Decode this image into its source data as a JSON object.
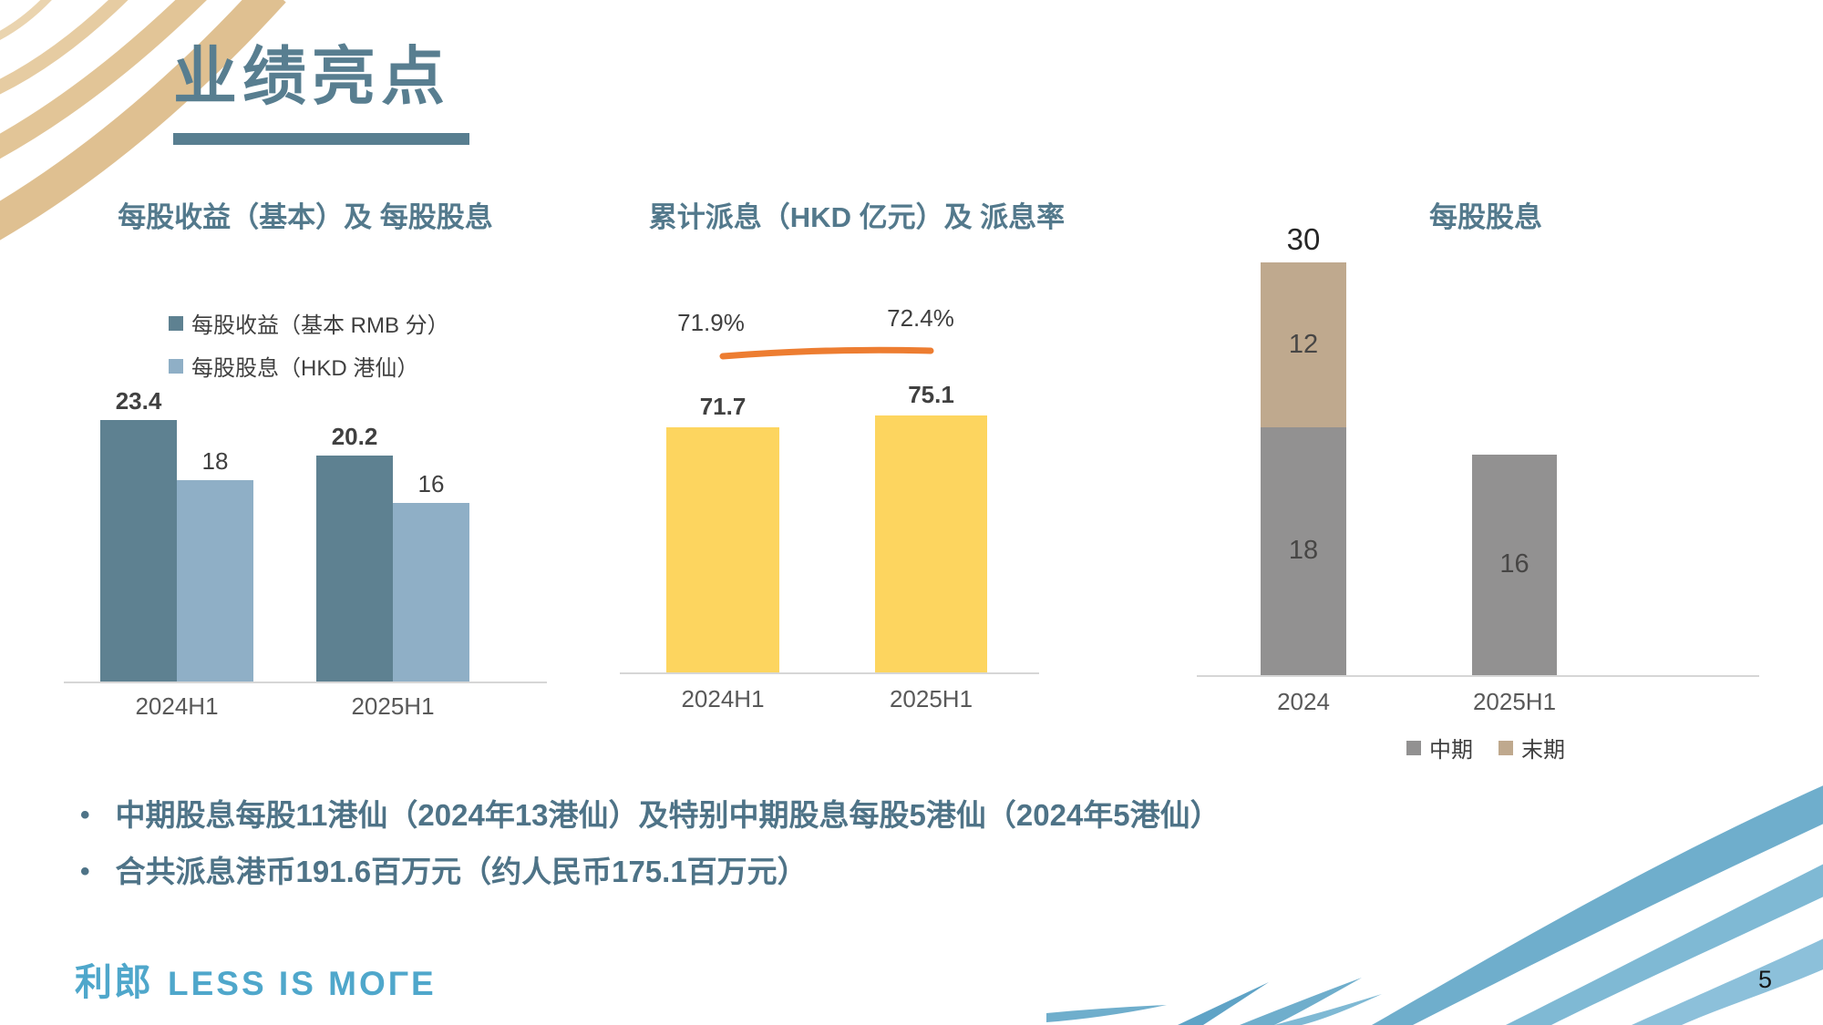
{
  "slide": {
    "title": "业绩亮点",
    "page_number": "5",
    "bullets": [
      "中期股息每股11港仙（2024年13港仙）及特别中期股息每股5港仙（2024年5港仙）",
      "合共派息港币191.6百万元（约人民币175.1百万元）"
    ],
    "logo": {
      "cn": "利郎",
      "en": "LESS IS MOΓE"
    }
  },
  "colors": {
    "title_text": "#587E90",
    "bullet_text": "#4E7387",
    "logo_blue": "#4FA7CB",
    "axis_line": "#D6D6D6",
    "decor_tan": "#E2C597",
    "decor_blue": "#6FAECC"
  },
  "chart_data": [
    {
      "id": "eps_dps",
      "type": "bar",
      "title": "每股收益（基本）及 每股股息",
      "categories": [
        "2024H1",
        "2025H1"
      ],
      "series": [
        {
          "name": "每股收益（基本 RMB 分）",
          "values": [
            23.4,
            20.2
          ],
          "color": "#5E8191"
        },
        {
          "name": "每股股息（HKD 港仙）",
          "values": [
            18,
            16
          ],
          "color": "#8FAFC6"
        }
      ],
      "legend_position": "top-left",
      "value_axis_visible": false,
      "grid": false
    },
    {
      "id": "payout",
      "type": "bar+line",
      "title": "累计派息（HKD 亿元）及 派息率",
      "categories": [
        "2024H1",
        "2025H1"
      ],
      "bar_series": {
        "name": "累计派息（HKD 亿元）",
        "values": [
          71.7,
          75.1
        ],
        "color": "#FDD55F"
      },
      "line_series": {
        "name": "派息率",
        "values": [
          71.9,
          72.4
        ],
        "labels": [
          "71.9%",
          "72.4%"
        ],
        "color": "#ED7D31"
      },
      "value_axis_visible": false,
      "grid": false
    },
    {
      "id": "dps_stacked",
      "type": "bar",
      "subtype": "stacked",
      "title": "每股股息",
      "categories": [
        "2024",
        "2025H1"
      ],
      "series": [
        {
          "name": "中期",
          "values": [
            18,
            16
          ],
          "color": "#929191"
        },
        {
          "name": "末期",
          "values": [
            12,
            0
          ],
          "color": "#BFA98E"
        }
      ],
      "totals": [
        30,
        null
      ],
      "legend_position": "bottom",
      "value_axis_visible": false,
      "grid": false
    }
  ]
}
